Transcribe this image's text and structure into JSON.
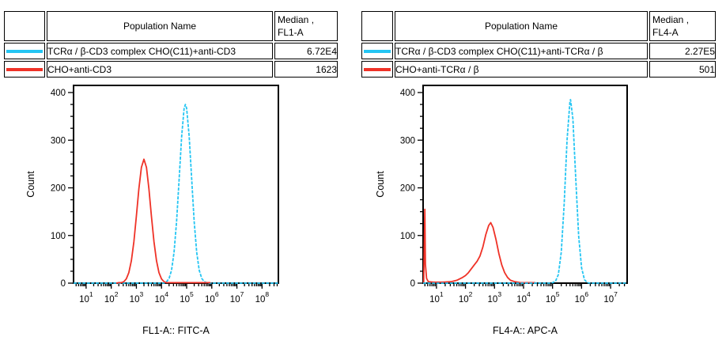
{
  "colors": {
    "cyan": "#24C5F3",
    "red": "#EF3227",
    "table_header_bg": "#C6C6C6",
    "axis": "#000000"
  },
  "tables": [
    {
      "header": {
        "population": "Population Name",
        "median_line1": "Median ,",
        "median_line2": "FL1-A"
      },
      "rows": [
        {
          "color": "#24C5F3",
          "name": "TCRα / β-CD3 complex CHO(C11)+anti-CD3",
          "median": "6.72E4"
        },
        {
          "color": "#EF3227",
          "name": "CHO+anti-CD3",
          "median": "1623"
        }
      ]
    },
    {
      "header": {
        "population": "Population Name",
        "median_line1": "Median ,",
        "median_line2": "FL4-A"
      },
      "rows": [
        {
          "color": "#24C5F3",
          "name": "TCRα / β-CD3 complex CHO(C11)+anti-TCRα / β",
          "median": "2.27E5"
        },
        {
          "color": "#EF3227",
          "name": "CHO+anti-TCRα / β",
          "median": "501"
        }
      ]
    }
  ],
  "chart_data": [
    {
      "type": "line",
      "title": "",
      "xlabel": "FL1-A:: FITC-A",
      "ylabel": "Count",
      "x_scale": "log10",
      "x_log_range": [
        0.5,
        8.65
      ],
      "x_tick_exponents": [
        1,
        2,
        3,
        4,
        5,
        6,
        7,
        8
      ],
      "ylim": [
        0,
        400
      ],
      "y_major_step": 100,
      "y_minor_step": 25,
      "grid": false,
      "legend_position": "none",
      "series": [
        {
          "name": "TCRα / β-CD3 complex CHO(C11)+anti-CD3",
          "color": "#24C5F3",
          "dashed": true,
          "median": "6.72E4",
          "peak_log10_x": 4.95,
          "peak_count": 375,
          "points": [
            [
              0.5,
              0
            ],
            [
              2.0,
              0
            ],
            [
              3.5,
              0
            ],
            [
              4.1,
              0
            ],
            [
              4.2,
              3
            ],
            [
              4.3,
              10
            ],
            [
              4.4,
              27
            ],
            [
              4.5,
              65
            ],
            [
              4.6,
              130
            ],
            [
              4.7,
              218
            ],
            [
              4.8,
              308
            ],
            [
              4.9,
              367
            ],
            [
              4.95,
              375
            ],
            [
              5.0,
              367
            ],
            [
              5.1,
              308
            ],
            [
              5.2,
              218
            ],
            [
              5.3,
              130
            ],
            [
              5.4,
              65
            ],
            [
              5.5,
              27
            ],
            [
              5.6,
              10
            ],
            [
              5.7,
              3
            ],
            [
              5.8,
              1
            ],
            [
              5.9,
              0
            ],
            [
              7.0,
              0
            ],
            [
              8.65,
              0
            ]
          ]
        },
        {
          "name": "CHO+anti-CD3",
          "color": "#EF3227",
          "dashed": false,
          "median": "1623",
          "peak_log10_x": 3.3,
          "peak_count": 260,
          "points": [
            [
              2.2,
              0
            ],
            [
              2.3,
              1
            ],
            [
              2.4,
              1
            ],
            [
              2.5,
              3
            ],
            [
              2.6,
              9
            ],
            [
              2.7,
              22
            ],
            [
              2.8,
              47
            ],
            [
              2.9,
              87
            ],
            [
              3.0,
              140
            ],
            [
              3.1,
              198
            ],
            [
              3.2,
              243
            ],
            [
              3.3,
              260
            ],
            [
              3.4,
              243
            ],
            [
              3.5,
              198
            ],
            [
              3.6,
              140
            ],
            [
              3.7,
              87
            ],
            [
              3.8,
              47
            ],
            [
              3.9,
              22
            ],
            [
              4.0,
              9
            ],
            [
              4.1,
              3
            ],
            [
              4.2,
              1
            ],
            [
              4.5,
              1
            ],
            [
              5.0,
              1
            ],
            [
              5.5,
              1
            ],
            [
              5.95,
              1
            ]
          ]
        }
      ]
    },
    {
      "type": "line",
      "title": "",
      "xlabel": "FL4-A:: APC-A",
      "ylabel": "Count",
      "x_scale": "log10",
      "x_log_range": [
        0.54,
        7.57
      ],
      "x_tick_exponents": [
        1,
        2,
        3,
        4,
        5,
        6,
        7
      ],
      "ylim": [
        0,
        400
      ],
      "y_major_step": 100,
      "y_minor_step": 25,
      "grid": false,
      "legend_position": "none",
      "series": [
        {
          "name": "CHO+anti-TCRα / β",
          "color": "#EF3227",
          "dashed": false,
          "median": "501",
          "peak_log10_x": 2.87,
          "peak_count": 127,
          "points": [
            [
              0.56,
              0
            ],
            [
              0.6,
              155
            ],
            [
              0.62,
              40
            ],
            [
              0.66,
              10
            ],
            [
              0.72,
              3
            ],
            [
              0.9,
              2
            ],
            [
              1.2,
              2
            ],
            [
              1.5,
              3
            ],
            [
              1.7,
              6
            ],
            [
              1.9,
              12
            ],
            [
              2.0,
              16
            ],
            [
              2.1,
              22
            ],
            [
              2.2,
              30
            ],
            [
              2.3,
              38
            ],
            [
              2.4,
              46
            ],
            [
              2.5,
              57
            ],
            [
              2.6,
              76
            ],
            [
              2.7,
              102
            ],
            [
              2.8,
              121
            ],
            [
              2.87,
              127
            ],
            [
              2.95,
              117
            ],
            [
              3.05,
              92
            ],
            [
              3.15,
              62
            ],
            [
              3.25,
              38
            ],
            [
              3.35,
              22
            ],
            [
              3.45,
              12
            ],
            [
              3.55,
              6
            ],
            [
              3.7,
              3
            ],
            [
              3.9,
              1
            ],
            [
              4.4,
              1
            ]
          ]
        },
        {
          "name": "TCRα / β-CD3 complex CHO(C11)+anti-TCRα / β",
          "color": "#24C5F3",
          "dashed": true,
          "median": "2.27E5",
          "peak_log10_x": 5.62,
          "peak_count": 385,
          "points": [
            [
              0.54,
              0
            ],
            [
              2.0,
              0
            ],
            [
              3.5,
              0
            ],
            [
              4.9,
              0
            ],
            [
              5.0,
              1
            ],
            [
              5.1,
              4
            ],
            [
              5.2,
              18
            ],
            [
              5.3,
              65
            ],
            [
              5.4,
              167
            ],
            [
              5.5,
              300
            ],
            [
              5.6,
              382
            ],
            [
              5.62,
              385
            ],
            [
              5.7,
              345
            ],
            [
              5.8,
              220
            ],
            [
              5.9,
              99
            ],
            [
              6.0,
              32
            ],
            [
              6.1,
              7
            ],
            [
              6.2,
              1
            ],
            [
              6.3,
              0
            ],
            [
              7.0,
              0
            ],
            [
              7.57,
              0
            ]
          ]
        }
      ]
    }
  ]
}
